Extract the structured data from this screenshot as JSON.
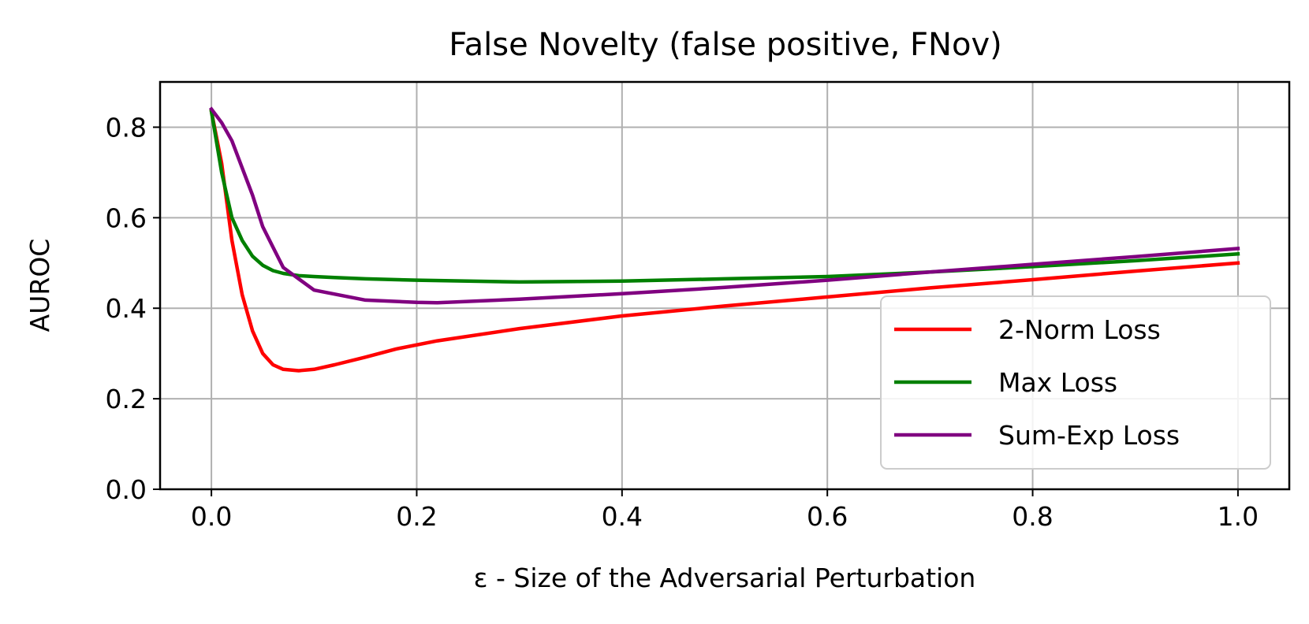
{
  "chart_data": {
    "type": "line",
    "title": "False Novelty (false positive, FNov)",
    "xlabel": "ε - Size of the Adversarial Perturbation",
    "ylabel": "AUROC",
    "xlim": [
      -0.05,
      1.05
    ],
    "ylim": [
      0.0,
      0.9
    ],
    "xticks": [
      "0.0",
      "0.2",
      "0.4",
      "0.6",
      "0.8",
      "1.0"
    ],
    "yticks": [
      "0.0",
      "0.2",
      "0.4",
      "0.6",
      "0.8"
    ],
    "grid": true,
    "legend_position": "lower-right",
    "series": [
      {
        "name": "2-Norm Loss",
        "color": "#ff0000",
        "x": [
          0.0,
          0.01,
          0.02,
          0.03,
          0.04,
          0.05,
          0.06,
          0.07,
          0.085,
          0.1,
          0.12,
          0.15,
          0.18,
          0.22,
          0.3,
          0.4,
          0.5,
          0.6,
          0.7,
          0.8,
          0.9,
          1.0
        ],
        "y": [
          0.835,
          0.72,
          0.55,
          0.43,
          0.35,
          0.3,
          0.275,
          0.265,
          0.262,
          0.265,
          0.275,
          0.292,
          0.31,
          0.328,
          0.355,
          0.383,
          0.405,
          0.425,
          0.445,
          0.463,
          0.482,
          0.5
        ]
      },
      {
        "name": "Max Loss",
        "color": "#008000",
        "x": [
          0.0,
          0.01,
          0.02,
          0.03,
          0.04,
          0.05,
          0.06,
          0.07,
          0.085,
          0.1,
          0.12,
          0.15,
          0.2,
          0.3,
          0.4,
          0.5,
          0.6,
          0.7,
          0.8,
          0.9,
          1.0
        ],
        "y": [
          0.835,
          0.7,
          0.6,
          0.55,
          0.515,
          0.495,
          0.483,
          0.477,
          0.472,
          0.47,
          0.468,
          0.465,
          0.462,
          0.458,
          0.46,
          0.465,
          0.47,
          0.48,
          0.492,
          0.505,
          0.52
        ]
      },
      {
        "name": "Sum-Exp Loss",
        "color": "#800080",
        "x": [
          0.0,
          0.01,
          0.02,
          0.03,
          0.04,
          0.05,
          0.06,
          0.07,
          0.085,
          0.1,
          0.15,
          0.2,
          0.22,
          0.3,
          0.4,
          0.5,
          0.6,
          0.7,
          0.8,
          0.9,
          1.0
        ],
        "y": [
          0.84,
          0.81,
          0.77,
          0.71,
          0.65,
          0.58,
          0.535,
          0.49,
          0.465,
          0.44,
          0.418,
          0.413,
          0.412,
          0.42,
          0.432,
          0.446,
          0.462,
          0.48,
          0.497,
          0.514,
          0.532
        ]
      }
    ]
  }
}
